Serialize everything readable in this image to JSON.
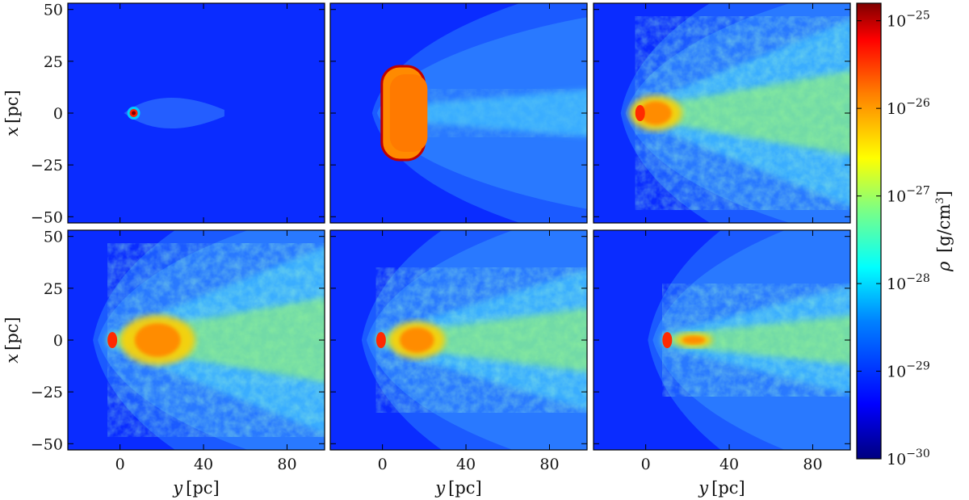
{
  "chart_data": {
    "type": "heatmap",
    "layout": "2x3 panel grid, shared axes, shared colorbar on the right",
    "x_axis": {
      "label_var": "y",
      "label_unit": "[pc]",
      "range": [
        -25,
        98
      ],
      "ticks": [
        0,
        40,
        80
      ]
    },
    "y_axis": {
      "label_var": "x",
      "label_unit": "[pc]",
      "range": [
        -53,
        53
      ],
      "ticks": [
        50,
        25,
        0,
        -25,
        -50
      ]
    },
    "colorbar": {
      "label_var": "ρ",
      "label_unit": "[g/cm",
      "label_unit_sup": "3",
      "label_unit_close": "]",
      "scale": "log",
      "range": [
        -30,
        -24.8
      ],
      "ticks": [
        {
          "base": "10",
          "exp": "−25",
          "value": -25
        },
        {
          "base": "10",
          "exp": "−26",
          "value": -26
        },
        {
          "base": "10",
          "exp": "−27",
          "value": -27
        },
        {
          "base": "10",
          "exp": "−28",
          "value": -28
        },
        {
          "base": "10",
          "exp": "−29",
          "value": -29
        },
        {
          "base": "10",
          "exp": "−30",
          "value": -30
        }
      ],
      "colormap": "jet",
      "colormap_stops": [
        "#00007f",
        "#0000ff",
        "#0080ff",
        "#00ffff",
        "#80ff80",
        "#ffff00",
        "#ff8000",
        "#ff0000",
        "#7f0000"
      ]
    },
    "panels": [
      {
        "id": "p1",
        "head_y": 5,
        "head_r": 3,
        "shape": "small bow shock with dense core"
      },
      {
        "id": "p2",
        "head_y": 2,
        "head_r": 12,
        "shape": "dense cloud with wide bow shock"
      },
      {
        "id": "p3",
        "head_y": -5,
        "head_r": 14,
        "shape": "fragmented cloud, turbulent wake"
      },
      {
        "id": "p4",
        "head_y": -6,
        "head_r": 20,
        "shape": "turbulent wake with dense filaments"
      },
      {
        "id": "p5",
        "head_y": -3,
        "head_r": 15,
        "shape": "stretched cloud tail"
      },
      {
        "id": "p6",
        "head_y": 8,
        "head_r": 10,
        "shape": "elongated streamer"
      }
    ],
    "ambient_color": "#0a2cff"
  }
}
